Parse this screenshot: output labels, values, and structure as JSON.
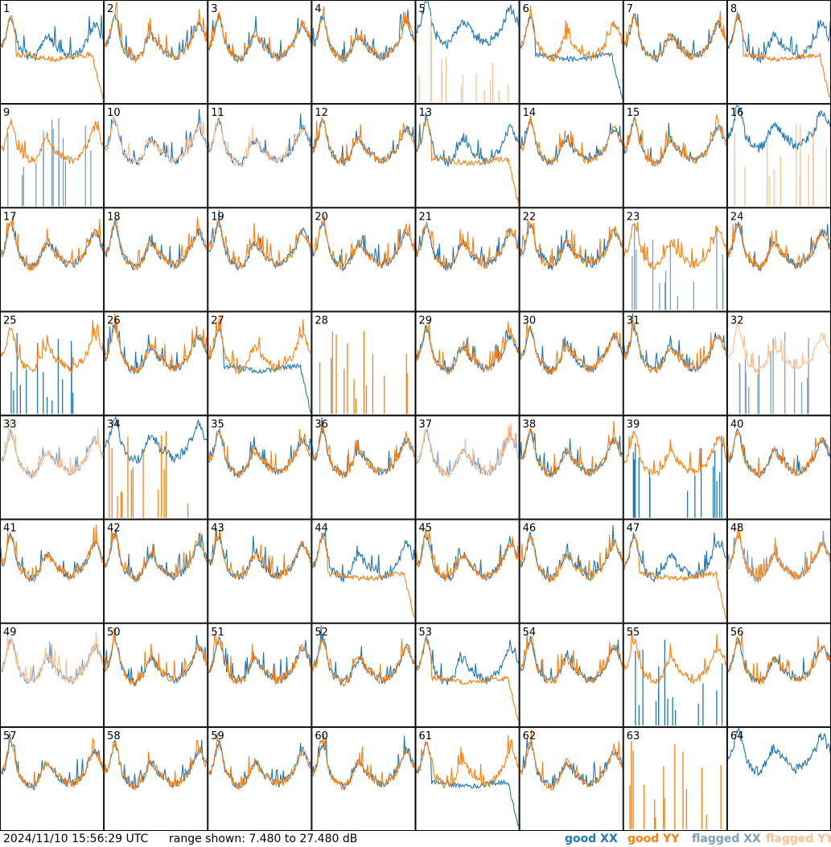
{
  "chart_data": {
    "type": "line",
    "layout": "8x8 small multiples",
    "range_db": [
      7.48,
      27.48
    ],
    "colors": {
      "good_xx": "#1f77b4",
      "good_yy": "#ff7f0e",
      "flagged_xx": "#7f9fbf",
      "flagged_yy": "#ffbf8f"
    },
    "tiles": [
      {
        "id": "1",
        "xx": {
          "status": "good",
          "shape": "normal"
        },
        "yy": {
          "status": "good",
          "shape": "dropout"
        }
      },
      {
        "id": "2",
        "xx": {
          "status": "good",
          "shape": "normal"
        },
        "yy": {
          "status": "good",
          "shape": "normal"
        }
      },
      {
        "id": "3",
        "xx": {
          "status": "good",
          "shape": "normal"
        },
        "yy": {
          "status": "good",
          "shape": "normal"
        }
      },
      {
        "id": "4",
        "xx": {
          "status": "good",
          "shape": "normal"
        },
        "yy": {
          "status": "good",
          "shape": "normal"
        }
      },
      {
        "id": "5",
        "xx": {
          "status": "good",
          "shape": "high"
        },
        "yy": {
          "status": "flagged",
          "shape": "spikes"
        }
      },
      {
        "id": "6",
        "xx": {
          "status": "good",
          "shape": "dropout"
        },
        "yy": {
          "status": "good",
          "shape": "normal"
        }
      },
      {
        "id": "7",
        "xx": {
          "status": "good",
          "shape": "normal"
        },
        "yy": {
          "status": "good",
          "shape": "normal"
        }
      },
      {
        "id": "8",
        "xx": {
          "status": "good",
          "shape": "normal"
        },
        "yy": {
          "status": "good",
          "shape": "dropout"
        }
      },
      {
        "id": "9",
        "xx": {
          "status": "flagged",
          "shape": "spikes"
        },
        "yy": {
          "status": "good",
          "shape": "normal"
        }
      },
      {
        "id": "10",
        "xx": {
          "status": "good",
          "shape": "normal"
        },
        "yy": {
          "status": "flagged",
          "shape": "normal"
        }
      },
      {
        "id": "11",
        "xx": {
          "status": "good",
          "shape": "normal"
        },
        "yy": {
          "status": "flagged",
          "shape": "normal"
        }
      },
      {
        "id": "12",
        "xx": {
          "status": "good",
          "shape": "normal"
        },
        "yy": {
          "status": "good",
          "shape": "normal"
        }
      },
      {
        "id": "13",
        "xx": {
          "status": "good",
          "shape": "normal"
        },
        "yy": {
          "status": "good",
          "shape": "dropout"
        }
      },
      {
        "id": "14",
        "xx": {
          "status": "good",
          "shape": "normal"
        },
        "yy": {
          "status": "good",
          "shape": "normal"
        }
      },
      {
        "id": "15",
        "xx": {
          "status": "good",
          "shape": "normal"
        },
        "yy": {
          "status": "good",
          "shape": "normal"
        }
      },
      {
        "id": "16",
        "xx": {
          "status": "good",
          "shape": "high"
        },
        "yy": {
          "status": "flagged",
          "shape": "spikes"
        }
      },
      {
        "id": "17",
        "xx": {
          "status": "good",
          "shape": "normal"
        },
        "yy": {
          "status": "good",
          "shape": "normal"
        }
      },
      {
        "id": "18",
        "xx": {
          "status": "good",
          "shape": "normal"
        },
        "yy": {
          "status": "good",
          "shape": "normal"
        }
      },
      {
        "id": "19",
        "xx": {
          "status": "good",
          "shape": "normal"
        },
        "yy": {
          "status": "good",
          "shape": "normal"
        }
      },
      {
        "id": "20",
        "xx": {
          "status": "good",
          "shape": "normal"
        },
        "yy": {
          "status": "good",
          "shape": "normal"
        }
      },
      {
        "id": "21",
        "xx": {
          "status": "good",
          "shape": "normal"
        },
        "yy": {
          "status": "good",
          "shape": "normal"
        }
      },
      {
        "id": "22",
        "xx": {
          "status": "good",
          "shape": "normal"
        },
        "yy": {
          "status": "good",
          "shape": "normal"
        }
      },
      {
        "id": "23",
        "xx": {
          "status": "flagged",
          "shape": "spikes"
        },
        "yy": {
          "status": "good",
          "shape": "normal"
        }
      },
      {
        "id": "24",
        "xx": {
          "status": "good",
          "shape": "normal"
        },
        "yy": {
          "status": "good",
          "shape": "normal"
        }
      },
      {
        "id": "25",
        "xx": {
          "status": "good",
          "shape": "spikes"
        },
        "yy": {
          "status": "good",
          "shape": "normal"
        }
      },
      {
        "id": "26",
        "xx": {
          "status": "good",
          "shape": "normal"
        },
        "yy": {
          "status": "good",
          "shape": "normal"
        }
      },
      {
        "id": "27",
        "xx": {
          "status": "good",
          "shape": "dropout"
        },
        "yy": {
          "status": "good",
          "shape": "normal"
        }
      },
      {
        "id": "28",
        "xx": {
          "status": "good",
          "shape": "none"
        },
        "yy": {
          "status": "good",
          "shape": "spikes"
        }
      },
      {
        "id": "29",
        "xx": {
          "status": "good",
          "shape": "normal"
        },
        "yy": {
          "status": "good",
          "shape": "normal"
        }
      },
      {
        "id": "30",
        "xx": {
          "status": "good",
          "shape": "normal"
        },
        "yy": {
          "status": "good",
          "shape": "normal"
        }
      },
      {
        "id": "31",
        "xx": {
          "status": "good",
          "shape": "normal"
        },
        "yy": {
          "status": "good",
          "shape": "normal"
        }
      },
      {
        "id": "32",
        "xx": {
          "status": "flagged",
          "shape": "spikes"
        },
        "yy": {
          "status": "flagged",
          "shape": "normal"
        }
      },
      {
        "id": "33",
        "xx": {
          "status": "flagged",
          "shape": "normal"
        },
        "yy": {
          "status": "flagged",
          "shape": "normal"
        }
      },
      {
        "id": "34",
        "xx": {
          "status": "good",
          "shape": "high"
        },
        "yy": {
          "status": "good",
          "shape": "spikes"
        }
      },
      {
        "id": "35",
        "xx": {
          "status": "good",
          "shape": "normal"
        },
        "yy": {
          "status": "good",
          "shape": "normal"
        }
      },
      {
        "id": "36",
        "xx": {
          "status": "good",
          "shape": "normal"
        },
        "yy": {
          "status": "good",
          "shape": "normal"
        }
      },
      {
        "id": "37",
        "xx": {
          "status": "flagged",
          "shape": "normal"
        },
        "yy": {
          "status": "flagged",
          "shape": "normal"
        }
      },
      {
        "id": "38",
        "xx": {
          "status": "good",
          "shape": "normal"
        },
        "yy": {
          "status": "good",
          "shape": "normal"
        }
      },
      {
        "id": "39",
        "xx": {
          "status": "good",
          "shape": "spikes"
        },
        "yy": {
          "status": "good",
          "shape": "normal"
        }
      },
      {
        "id": "40",
        "xx": {
          "status": "good",
          "shape": "normal"
        },
        "yy": {
          "status": "good",
          "shape": "normal"
        }
      },
      {
        "id": "41",
        "xx": {
          "status": "good",
          "shape": "normal"
        },
        "yy": {
          "status": "good",
          "shape": "normal"
        }
      },
      {
        "id": "42",
        "xx": {
          "status": "good",
          "shape": "normal"
        },
        "yy": {
          "status": "good",
          "shape": "normal"
        }
      },
      {
        "id": "43",
        "xx": {
          "status": "good",
          "shape": "normal"
        },
        "yy": {
          "status": "good",
          "shape": "normal"
        }
      },
      {
        "id": "44",
        "xx": {
          "status": "good",
          "shape": "normal"
        },
        "yy": {
          "status": "good",
          "shape": "dropout"
        }
      },
      {
        "id": "45",
        "xx": {
          "status": "good",
          "shape": "normal"
        },
        "yy": {
          "status": "good",
          "shape": "normal"
        }
      },
      {
        "id": "46",
        "xx": {
          "status": "good",
          "shape": "normal"
        },
        "yy": {
          "status": "good",
          "shape": "normal"
        }
      },
      {
        "id": "47",
        "xx": {
          "status": "good",
          "shape": "normal"
        },
        "yy": {
          "status": "good",
          "shape": "dropout"
        }
      },
      {
        "id": "48",
        "xx": {
          "status": "flagged",
          "shape": "normal"
        },
        "yy": {
          "status": "good",
          "shape": "normal"
        }
      },
      {
        "id": "49",
        "xx": {
          "status": "flagged",
          "shape": "normal"
        },
        "yy": {
          "status": "flagged",
          "shape": "normal"
        }
      },
      {
        "id": "50",
        "xx": {
          "status": "good",
          "shape": "normal"
        },
        "yy": {
          "status": "good",
          "shape": "normal"
        }
      },
      {
        "id": "51",
        "xx": {
          "status": "good",
          "shape": "normal"
        },
        "yy": {
          "status": "good",
          "shape": "normal"
        }
      },
      {
        "id": "52",
        "xx": {
          "status": "good",
          "shape": "normal"
        },
        "yy": {
          "status": "good",
          "shape": "normal"
        }
      },
      {
        "id": "53",
        "xx": {
          "status": "good",
          "shape": "normal"
        },
        "yy": {
          "status": "good",
          "shape": "dropout"
        }
      },
      {
        "id": "54",
        "xx": {
          "status": "good",
          "shape": "normal"
        },
        "yy": {
          "status": "good",
          "shape": "normal"
        }
      },
      {
        "id": "55",
        "xx": {
          "status": "good",
          "shape": "spikes"
        },
        "yy": {
          "status": "good",
          "shape": "normal"
        }
      },
      {
        "id": "56",
        "xx": {
          "status": "good",
          "shape": "normal"
        },
        "yy": {
          "status": "good",
          "shape": "normal"
        }
      },
      {
        "id": "57",
        "xx": {
          "status": "good",
          "shape": "normal"
        },
        "yy": {
          "status": "good",
          "shape": "normal"
        }
      },
      {
        "id": "58",
        "xx": {
          "status": "good",
          "shape": "normal"
        },
        "yy": {
          "status": "good",
          "shape": "normal"
        }
      },
      {
        "id": "59",
        "xx": {
          "status": "good",
          "shape": "normal"
        },
        "yy": {
          "status": "good",
          "shape": "normal"
        }
      },
      {
        "id": "60",
        "xx": {
          "status": "good",
          "shape": "normal"
        },
        "yy": {
          "status": "good",
          "shape": "normal"
        }
      },
      {
        "id": "61",
        "xx": {
          "status": "good",
          "shape": "dropout"
        },
        "yy": {
          "status": "good",
          "shape": "normal"
        }
      },
      {
        "id": "62",
        "xx": {
          "status": "good",
          "shape": "normal"
        },
        "yy": {
          "status": "good",
          "shape": "normal"
        }
      },
      {
        "id": "63",
        "xx": {
          "status": "good",
          "shape": "none"
        },
        "yy": {
          "status": "good",
          "shape": "spikes"
        }
      },
      {
        "id": "64",
        "xx": {
          "status": "good",
          "shape": "high"
        },
        "yy": {
          "status": "good",
          "shape": "none"
        }
      }
    ]
  },
  "footer": {
    "timestamp": "2024/11/10 15:56:29 UTC",
    "range_text": "range shown: 7.480 to 27.480 dB",
    "legend": {
      "good_xx": "good XX",
      "good_yy": "good YY",
      "flagged_xx": "flagged XX",
      "flagged_yy": "flagged YY"
    }
  }
}
